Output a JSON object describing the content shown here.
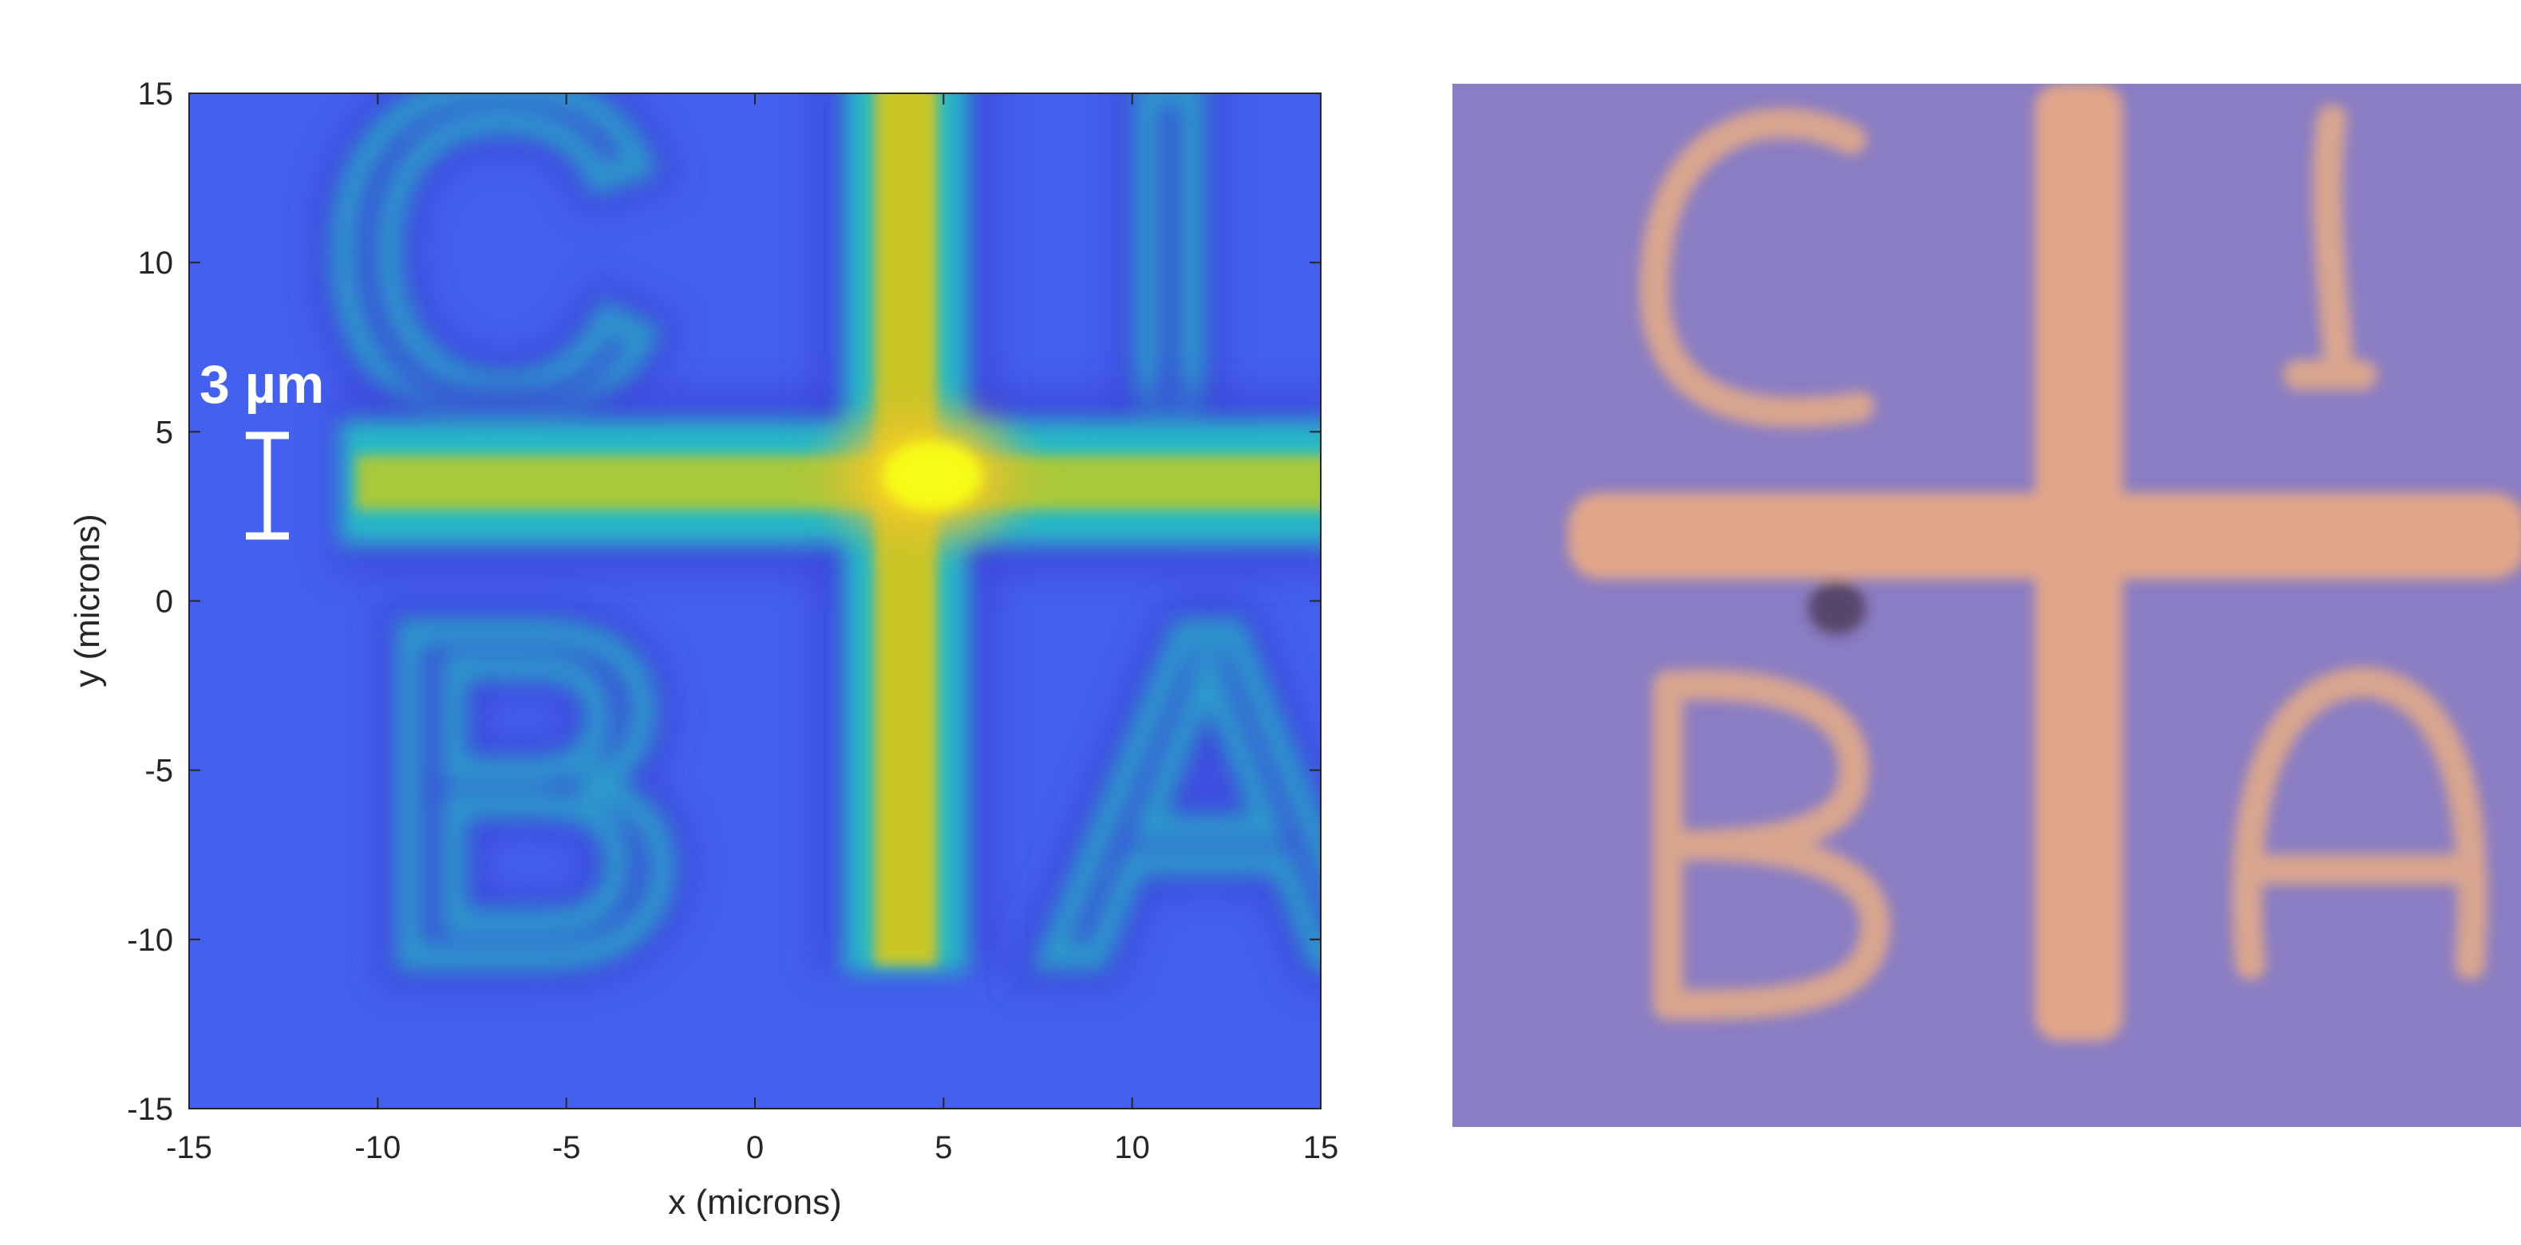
{
  "chart_data": [
    {
      "type": "heatmap",
      "title": "",
      "xlabel": "x (microns)",
      "ylabel": "y (microns)",
      "xlim": [
        -15,
        15
      ],
      "ylim": [
        -15,
        15
      ],
      "xticks": [
        "-15",
        "-10",
        "-5",
        "0",
        "5",
        "10",
        "15"
      ],
      "yticks": [
        "15",
        "10",
        "5",
        "0",
        "-5",
        "-10",
        "-15"
      ],
      "colormap": "parula",
      "grid": false,
      "annotation": {
        "text": "3 µm",
        "scale_bar_microns": 3
      },
      "structures": {
        "horizontal_line": {
          "y": 3.5,
          "x_from": -11,
          "x_to": 15
        },
        "vertical_line": {
          "x": 4,
          "y_from": -11,
          "y_to": 15
        },
        "hotspot": {
          "x": 4.5,
          "y": 3.7
        },
        "letters_outline": [
          {
            "letter": "C",
            "x": -7,
            "y": 10.5
          },
          {
            "letter": "I",
            "x": 11,
            "y": 10.5
          },
          {
            "letter": "B",
            "x": -6,
            "y": -5.5
          },
          {
            "letter": "A",
            "x": 12,
            "y": -5.5
          }
        ]
      },
      "colors": {
        "low": "#3d3fd8",
        "base": "#4460ee",
        "mid": "#27b8c6",
        "high": "#c9c626",
        "max": "#f7fb14"
      }
    },
    {
      "type": "image",
      "description_letters": [
        "C",
        "I",
        "B",
        "A"
      ],
      "colors": {
        "background": "#8a7dc3",
        "pattern": "#e6a886"
      }
    }
  ]
}
